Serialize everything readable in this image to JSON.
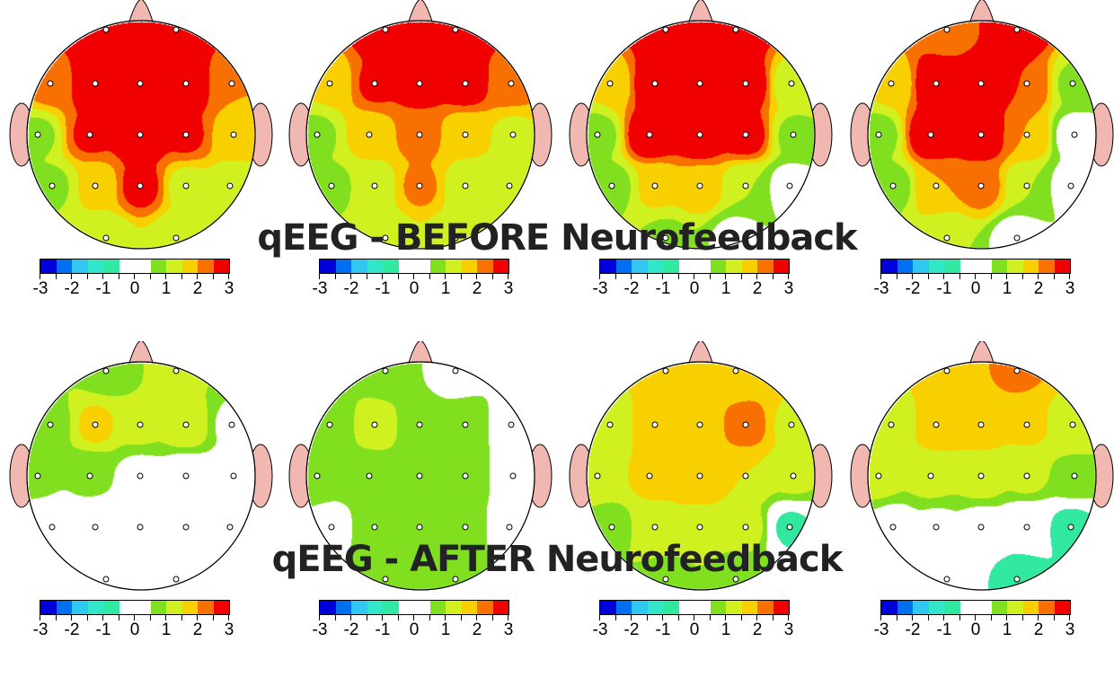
{
  "titles": {
    "before": "qEEG - BEFORE Neurofeedback",
    "after": "qEEG - AFTER Neurofeedback"
  },
  "chart_data": {
    "type": "heatmap",
    "description_kind": "topographic scalp maps (z-scores)",
    "electrodes": [
      "Fp1",
      "Fp2",
      "F7",
      "F3",
      "Fz",
      "F4",
      "F8",
      "T3",
      "C3",
      "Cz",
      "C4",
      "T4",
      "T5",
      "P3",
      "Pz",
      "P4",
      "T6",
      "O1",
      "O2"
    ],
    "colorbar": {
      "range": [
        -3,
        3
      ],
      "tick_labels": [
        "-3",
        "-2",
        "-1",
        "0",
        "1",
        "2",
        "3"
      ],
      "colors": [
        "#0000dd",
        "#0070f0",
        "#30c8f0",
        "#30e8c8",
        "#30e8a0",
        "#ffffff",
        "#ffffff",
        "#80e020",
        "#d0f020",
        "#f8d000",
        "#f87000",
        "#f00000"
      ]
    },
    "maps": [
      {
        "row": "before",
        "values": [
          3,
          3,
          2.2,
          3,
          3,
          3,
          2,
          0.9,
          2.6,
          3,
          2.6,
          1.7,
          0.9,
          1.6,
          2.7,
          1.3,
          1.2,
          1.1,
          1.1
        ]
      },
      {
        "row": "before",
        "values": [
          3,
          3,
          1.6,
          2.6,
          2.8,
          2.8,
          2.2,
          0.9,
          1.7,
          2.2,
          1.6,
          1.4,
          0.9,
          1.2,
          2.1,
          1.2,
          1.1,
          1.1,
          1.1
        ]
      },
      {
        "row": "before",
        "values": [
          3,
          3,
          1.6,
          3,
          3,
          3,
          1.2,
          0.8,
          3,
          3,
          2.8,
          0.9,
          0.8,
          1.6,
          1.8,
          1.0,
          0.2,
          0.9,
          0.3
        ]
      },
      {
        "row": "before",
        "values": [
          2.2,
          3,
          1.6,
          3,
          3,
          2.5,
          0.9,
          0.8,
          3,
          3,
          2.0,
          0.2,
          0.8,
          2.0,
          2.2,
          1.0,
          0.2,
          1.0,
          0.2
        ]
      },
      {
        "row": "after",
        "values": [
          0.8,
          1.1,
          0.8,
          1.6,
          1.1,
          1.4,
          0.4,
          0.6,
          0.6,
          0.3,
          0.1,
          0,
          0,
          0,
          0,
          0,
          0,
          0,
          0
        ]
      },
      {
        "row": "after",
        "values": [
          0.8,
          0.2,
          0.7,
          1.2,
          0.8,
          0.8,
          0.2,
          0.7,
          0.8,
          0.8,
          0.8,
          0.2,
          0.3,
          0.8,
          0.8,
          0.7,
          0.2,
          0.7,
          0.7
        ]
      },
      {
        "row": "after",
        "values": [
          1.6,
          1.6,
          1.2,
          1.8,
          1.8,
          2.2,
          1.4,
          1.2,
          1.6,
          1.8,
          1.5,
          1.1,
          0.8,
          1.4,
          1.4,
          1.2,
          -0.6,
          0.8,
          0.7
        ]
      },
      {
        "row": "after",
        "values": [
          1.8,
          2.1,
          1.1,
          1.8,
          1.7,
          1.6,
          1.3,
          1.2,
          1.2,
          1.3,
          1.1,
          0.9,
          0.2,
          0.4,
          0.3,
          -0.3,
          -0.7,
          0.2,
          -0.8
        ]
      }
    ]
  }
}
